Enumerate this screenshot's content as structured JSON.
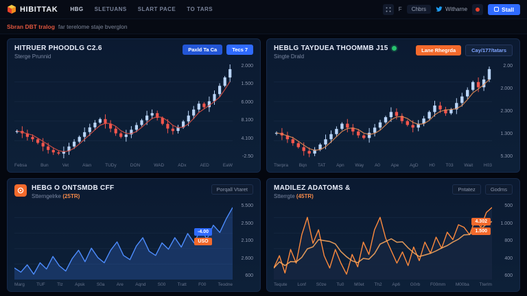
{
  "nav": {
    "logo_text": "HIBITTAK",
    "items": [
      "HBG",
      "SLETUANS",
      "SLART PACE",
      "TO TARS"
    ],
    "right": {
      "chip_f": "F",
      "chip_chbrs": "Chbrs",
      "twitter_label": "Witharne",
      "cta_label": "Stall"
    }
  },
  "subheader": {
    "accent": "Sbran DBT tralog",
    "rest": "far terelome staje bverglon"
  },
  "panels": [
    {
      "title": "HITRUER PHOODLG C2.6",
      "subtitle": "Sterge Prunnid",
      "buttons": [
        "Paxld Ta Ca",
        "Tecs 7"
      ]
    },
    {
      "title": "HEBLG TAYDUEA THOOMMB J15",
      "subtitle": "Singte Drald",
      "buttons": [
        "Lane Rhegrda",
        "Cay/177/tatars"
      ]
    },
    {
      "title": "HEBG O ONTSMDB CFF",
      "subtitle": "Stterngelrke",
      "subtitle_accent": "(25TR)",
      "right_label": "Porqall Vtaret",
      "badges": [
        {
          "label": "-4.00",
          "color": "#2f6bff"
        },
        {
          "label": "USO",
          "color": "#f46a2c"
        }
      ]
    },
    {
      "title": "MADILEZ ADATOMS &",
      "subtitle": "Stterrgte",
      "subtitle_accent": "(45TR)",
      "right_labels": [
        "Pntatez",
        "Godms"
      ],
      "badges": [
        {
          "label": "4.302",
          "color": "#f46a2c"
        },
        {
          "label": "1.500",
          "color": "#f46a2c"
        }
      ]
    }
  ],
  "chart_data": [
    {
      "id": "c1",
      "type": "candlestick",
      "title": "HITRUER PHOODLG C2.6",
      "values": [
        46,
        44,
        41,
        39,
        36,
        33,
        30,
        28,
        27,
        29,
        33,
        37,
        41,
        45,
        49,
        53,
        56,
        52,
        48,
        44,
        41,
        43,
        47,
        51,
        55,
        59,
        61,
        57,
        52,
        48,
        46,
        49,
        54,
        59,
        64,
        69,
        66,
        71,
        77,
        84,
        91,
        98
      ],
      "ylim": [
        20,
        105
      ],
      "x_labels": [
        "Febsa",
        "Bun",
        "Vet",
        "Alan",
        "TUDy",
        "DON",
        "WAD",
        "ADx",
        "AED",
        "EaW"
      ],
      "y_labels": [
        "2.000",
        "1.500",
        "6.000",
        "8.100",
        "4.100",
        "-2.50"
      ],
      "legend": null,
      "grid": true,
      "colors": {
        "up": "#b9d4f7",
        "down": "#f2564d",
        "ma": "#d94f44"
      }
    },
    {
      "id": "c2",
      "type": "candlestick",
      "title": "HEBLG TAYDUEA THOOMMB J15",
      "values": [
        40,
        38,
        35,
        32,
        29,
        26,
        24,
        27,
        31,
        35,
        39,
        43,
        47,
        44,
        41,
        38,
        36,
        40,
        44,
        48,
        52,
        56,
        53,
        49,
        46,
        44,
        47,
        51,
        56,
        61,
        58,
        55,
        58,
        63,
        68,
        73,
        79,
        75,
        81,
        89
      ],
      "ylim": [
        18,
        95
      ],
      "x_labels": [
        "Tterpra",
        "Bqn",
        "TAT",
        "Apn",
        "Way",
        "A0",
        "Ape",
        "AgD",
        "H0",
        "T03",
        "Wait",
        "H03"
      ],
      "y_labels": [
        "2.00",
        "2.000",
        "2.300",
        "1.300",
        "5.300"
      ],
      "legend": null,
      "grid": true,
      "colors": {
        "up": "#b9d4f7",
        "down": "#f2564d",
        "ma": "#e38b54"
      }
    },
    {
      "id": "c3",
      "type": "line",
      "title": "HEBG O ONTSMDB CFF",
      "values": [
        34,
        30,
        37,
        28,
        39,
        33,
        45,
        36,
        31,
        43,
        51,
        40,
        53,
        44,
        39,
        51,
        59,
        46,
        42,
        55,
        63,
        50,
        46,
        58,
        52,
        63,
        54,
        67,
        58,
        71,
        62,
        75,
        68,
        81,
        92
      ],
      "ylim": [
        20,
        100
      ],
      "x_labels": [
        "Marg",
        "TUF",
        "Tlz",
        "Apsk",
        "S0a",
        "Are",
        "Aqnd",
        "S00",
        "Tratt",
        "F00",
        "Teodne"
      ],
      "y_labels": [
        "5.500",
        "2.500",
        "2.100",
        "2.600",
        "600"
      ],
      "legend": null,
      "grid": true,
      "colors": {
        "stroke": "#4d8dff",
        "fill": "rgba(61,118,230,0.25)"
      }
    },
    {
      "id": "c4",
      "type": "area",
      "title": "MADILEZ ADATOMS &",
      "values": [
        46,
        56,
        42,
        61,
        50,
        73,
        87,
        66,
        77,
        56,
        46,
        61,
        50,
        41,
        57,
        47,
        67,
        57,
        77,
        87,
        70,
        60,
        50,
        59,
        48,
        63,
        52,
        67,
        58,
        71,
        62,
        75,
        69,
        81,
        79,
        73,
        85,
        79,
        91,
        95
      ],
      "ylim": [
        30,
        100
      ],
      "x_labels": [
        "Tequte",
        "Lonf",
        "S0ze",
        "Tu0",
        "M0et",
        "Th2",
        "Ap6",
        "G0rb",
        "F00mm",
        "M00ba",
        "Tterlm"
      ],
      "y_labels": [
        "500",
        "1.000",
        "800",
        "400",
        "600"
      ],
      "legend": null,
      "grid": true,
      "colors": {
        "stroke": "#ff8a3d",
        "fill": "rgba(21,37,63,0.95)",
        "ma": "#ffaa5e"
      }
    }
  ]
}
